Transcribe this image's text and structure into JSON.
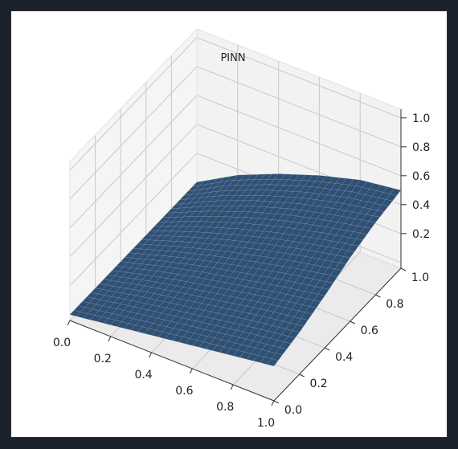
{
  "chart_data": {
    "type": "surface",
    "title": "PINN",
    "xlabel": "",
    "ylabel": "",
    "zlabel": "",
    "xlim": [
      0.0,
      1.0
    ],
    "ylim": [
      0.0,
      1.0
    ],
    "zlim": [
      0.0,
      1.0
    ],
    "x_ticks": [
      "0.0",
      "0.2",
      "0.4",
      "0.6",
      "0.8",
      "1.0"
    ],
    "y_ticks": [
      "0.0",
      "0.2",
      "0.4",
      "0.6",
      "0.8",
      "1.0"
    ],
    "z_ticks": [
      "0.2",
      "0.4",
      "0.6",
      "0.8",
      "1.0"
    ],
    "grid": true,
    "surface_color": "#2f4f73",
    "mesh_color": "#9fb6cc",
    "pane_color": "#f2f2f2",
    "grid_color": "#c8c8c8",
    "surface": {
      "x": [
        0.0,
        0.2,
        0.4,
        0.6,
        0.8,
        1.0
      ],
      "y": [
        0.0,
        0.2,
        0.4,
        0.6,
        0.8,
        1.0
      ],
      "z": [
        [
          0.0,
          0.0,
          0.0,
          0.0,
          0.0,
          0.0
        ],
        [
          0.04,
          0.06,
          0.08,
          0.1,
          0.13,
          0.16
        ],
        [
          0.08,
          0.11,
          0.15,
          0.19,
          0.24,
          0.28
        ],
        [
          0.12,
          0.16,
          0.21,
          0.27,
          0.33,
          0.38
        ],
        [
          0.16,
          0.21,
          0.27,
          0.34,
          0.4,
          0.46
        ],
        [
          0.2,
          0.25,
          0.32,
          0.4,
          0.46,
          0.5
        ]
      ]
    }
  }
}
